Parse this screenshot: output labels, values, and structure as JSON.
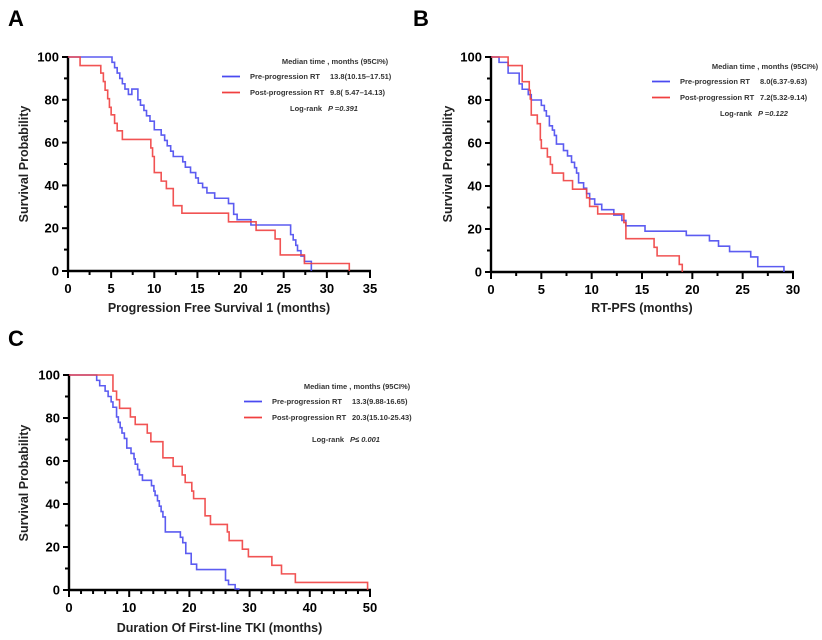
{
  "chart_data": [
    {
      "type": "line",
      "subtype": "kaplan-meier",
      "panel": "A",
      "title": "",
      "xlabel": "Progression Free Survival 1 (months)",
      "ylabel": "Survival Probability",
      "xlim": [
        0,
        35
      ],
      "ylim": [
        0,
        100
      ],
      "xticks": [
        "0",
        "5",
        "10",
        "15",
        "20",
        "25",
        "30",
        "35"
      ],
      "yticks": [
        "0",
        "20",
        "40",
        "60",
        "80",
        "100"
      ],
      "legend": {
        "placement": "top-right",
        "header": "Median time , months (95CI%)",
        "entries": [
          {
            "name": "Pre-progression RT",
            "value": "13.8(10.15–17.51)",
            "color": "#4a4af0"
          },
          {
            "name": "Post-progression RT",
            "value": "9.8( 5.47–14.13)",
            "color": "#f04040"
          }
        ],
        "logrank_label": "Log-rank",
        "logrank_p": "P =0.391"
      },
      "series": [
        {
          "name": "Pre-progression RT",
          "color": "#4a4af0",
          "x": [
            0,
            5.1,
            5.4,
            5.7,
            6.0,
            6.3,
            6.6,
            7.0,
            7.4,
            8.1,
            8.4,
            8.8,
            9.1,
            9.5,
            10.0,
            10.8,
            11.2,
            11.5,
            11.9,
            12.2,
            13.3,
            13.6,
            14.2,
            14.8,
            15.1,
            15.6,
            16.1,
            17.0,
            18.6,
            19.2,
            19.6,
            21.2,
            25.8,
            26.1,
            26.4,
            26.6,
            27.0,
            27.4,
            28.2
          ],
          "y": [
            100,
            97.5,
            95,
            92.5,
            90,
            87.5,
            85,
            82.5,
            85,
            80,
            77.5,
            75,
            72.5,
            70,
            66,
            63.5,
            61,
            58.5,
            56,
            53.5,
            51,
            48.5,
            46,
            43.5,
            41,
            39,
            36.5,
            34,
            31.5,
            26.5,
            24,
            21.5,
            17,
            14.5,
            12,
            9.5,
            7,
            4.5,
            0
          ]
        },
        {
          "name": "Post-progression RT",
          "color": "#f04040",
          "x": [
            0,
            1.4,
            3.8,
            4.1,
            4.3,
            4.6,
            4.8,
            5.0,
            5.4,
            5.7,
            6.3,
            9.6,
            9.8,
            10.0,
            10.8,
            11.4,
            12.2,
            13.2,
            18.6,
            21.8,
            24.0,
            24.6,
            27.4,
            32.6
          ],
          "y": [
            100,
            96,
            92.5,
            88.5,
            84.5,
            80.5,
            76.5,
            73,
            69,
            65.5,
            61.5,
            57.5,
            53.5,
            46,
            42,
            38.5,
            30.5,
            27,
            23,
            19,
            15,
            7.5,
            3.5,
            0
          ]
        }
      ]
    },
    {
      "type": "line",
      "subtype": "kaplan-meier",
      "panel": "B",
      "title": "",
      "xlabel": "RT-PFS (months)",
      "ylabel": "Survival Probability",
      "xlim": [
        0,
        30
      ],
      "ylim": [
        0,
        100
      ],
      "xticks": [
        "0",
        "5",
        "10",
        "15",
        "20",
        "25",
        "30"
      ],
      "yticks": [
        "0",
        "20",
        "40",
        "60",
        "80",
        "100"
      ],
      "legend": {
        "placement": "top-right",
        "header": "Median time , months (95CI%)",
        "entries": [
          {
            "name": "Pre-progression RT",
            "value": "8.0(6.37-9.63)",
            "color": "#4a4af0"
          },
          {
            "name": "Post-progression RT",
            "value": "7.2(5.32-9.14)",
            "color": "#f04040"
          }
        ],
        "logrank_label": "Log-rank",
        "logrank_p": "P =0.122"
      },
      "series": [
        {
          "name": "Pre-progression RT",
          "color": "#4a4af0",
          "x": [
            0,
            0.8,
            1.7,
            2.8,
            3.1,
            3.7,
            4.0,
            5.0,
            5.3,
            5.5,
            5.8,
            6.1,
            6.3,
            6.5,
            7.2,
            7.6,
            8.0,
            8.3,
            8.5,
            8.7,
            9.2,
            9.5,
            9.8,
            10.3,
            11.0,
            12.2,
            13.0,
            13.4,
            15.3,
            19.4,
            21.7,
            22.6,
            23.7,
            25.8,
            26.5,
            29.1
          ],
          "y": [
            100,
            97.5,
            92.5,
            87.5,
            85,
            82.5,
            80,
            77.5,
            75,
            72.5,
            68,
            66,
            63.5,
            59.5,
            56.5,
            54,
            51,
            48.5,
            46,
            41.5,
            39,
            36.5,
            34,
            31.5,
            29,
            26.5,
            24,
            21.5,
            19,
            17,
            14.5,
            12,
            9.5,
            7,
            2.5,
            0
          ]
        },
        {
          "name": "Post-progression RT",
          "color": "#f04040",
          "x": [
            0,
            1.7,
            3.1,
            3.8,
            3.9,
            4.0,
            4.6,
            4.9,
            5.0,
            5.6,
            5.9,
            6.1,
            7.2,
            8.1,
            9.5,
            9.8,
            10.6,
            13.2,
            13.4,
            16.2,
            16.5,
            18.7,
            19.0
          ],
          "y": [
            100,
            96,
            88.5,
            84.5,
            80.5,
            73,
            69,
            61.5,
            57.5,
            53.5,
            50,
            46,
            42.5,
            38.5,
            34.5,
            30.5,
            27,
            23,
            15.5,
            11.5,
            7.5,
            3.5,
            0
          ]
        }
      ]
    },
    {
      "type": "line",
      "subtype": "kaplan-meier",
      "panel": "C",
      "title": "",
      "xlabel": "Duration Of First-line TKI (months)",
      "ylabel": "Survival Probability",
      "xlim": [
        0,
        50
      ],
      "ylim": [
        0,
        100
      ],
      "xticks": [
        "0",
        "10",
        "20",
        "30",
        "40",
        "50"
      ],
      "yticks": [
        "0",
        "20",
        "40",
        "60",
        "80",
        "100"
      ],
      "legend": {
        "placement": "top-right",
        "header": "Median time , months (95CI%)",
        "entries": [
          {
            "name": "Pre-progression RT",
            "value": "13.3(9.88-16.65)",
            "color": "#4a4af0"
          },
          {
            "name": "Post-progression RT",
            "value": "20.3(15.10-25.43)",
            "color": "#f04040"
          }
        ],
        "logrank_label": "Log-rank",
        "logrank_p": "P≤ 0.001"
      },
      "series": [
        {
          "name": "Pre-progression RT",
          "color": "#4a4af0",
          "x": [
            0,
            4.6,
            5.1,
            6.0,
            6.5,
            7.0,
            7.3,
            7.9,
            8.2,
            8.5,
            8.8,
            9.2,
            9.6,
            10.3,
            10.8,
            11.0,
            11.4,
            11.7,
            12.2,
            13.7,
            14.1,
            14.3,
            14.7,
            15.0,
            15.3,
            15.6,
            16.0,
            18.5,
            18.9,
            19.4,
            20.3,
            21.2,
            26.0,
            26.5,
            27.6,
            28.2
          ],
          "y": [
            100,
            97.5,
            95,
            92.5,
            90,
            87.5,
            85,
            80.5,
            78,
            75.5,
            73,
            70.5,
            66,
            63.5,
            61,
            58.5,
            56,
            53.5,
            51,
            48.5,
            46,
            44,
            41.5,
            39,
            36.5,
            34,
            27,
            24.5,
            22,
            17,
            12,
            9.5,
            4.5,
            2.5,
            0.5,
            0
          ]
        },
        {
          "name": "Post-progression RT",
          "color": "#f04040",
          "x": [
            0,
            7.3,
            7.9,
            8.4,
            10.2,
            11.0,
            13.0,
            13.6,
            15.6,
            17.3,
            18.8,
            19.3,
            20.4,
            20.7,
            22.6,
            23.5,
            26.3,
            26.6,
            28.8,
            29.8,
            33.7,
            35.3,
            37.6,
            49.6
          ],
          "y": [
            100,
            92.5,
            88.5,
            84.5,
            80.5,
            77,
            73,
            69,
            61.5,
            57.5,
            53.5,
            50,
            46,
            42.5,
            34.5,
            30.5,
            27,
            23,
            19,
            15.5,
            11.5,
            7.5,
            3.5,
            0
          ]
        }
      ]
    }
  ]
}
